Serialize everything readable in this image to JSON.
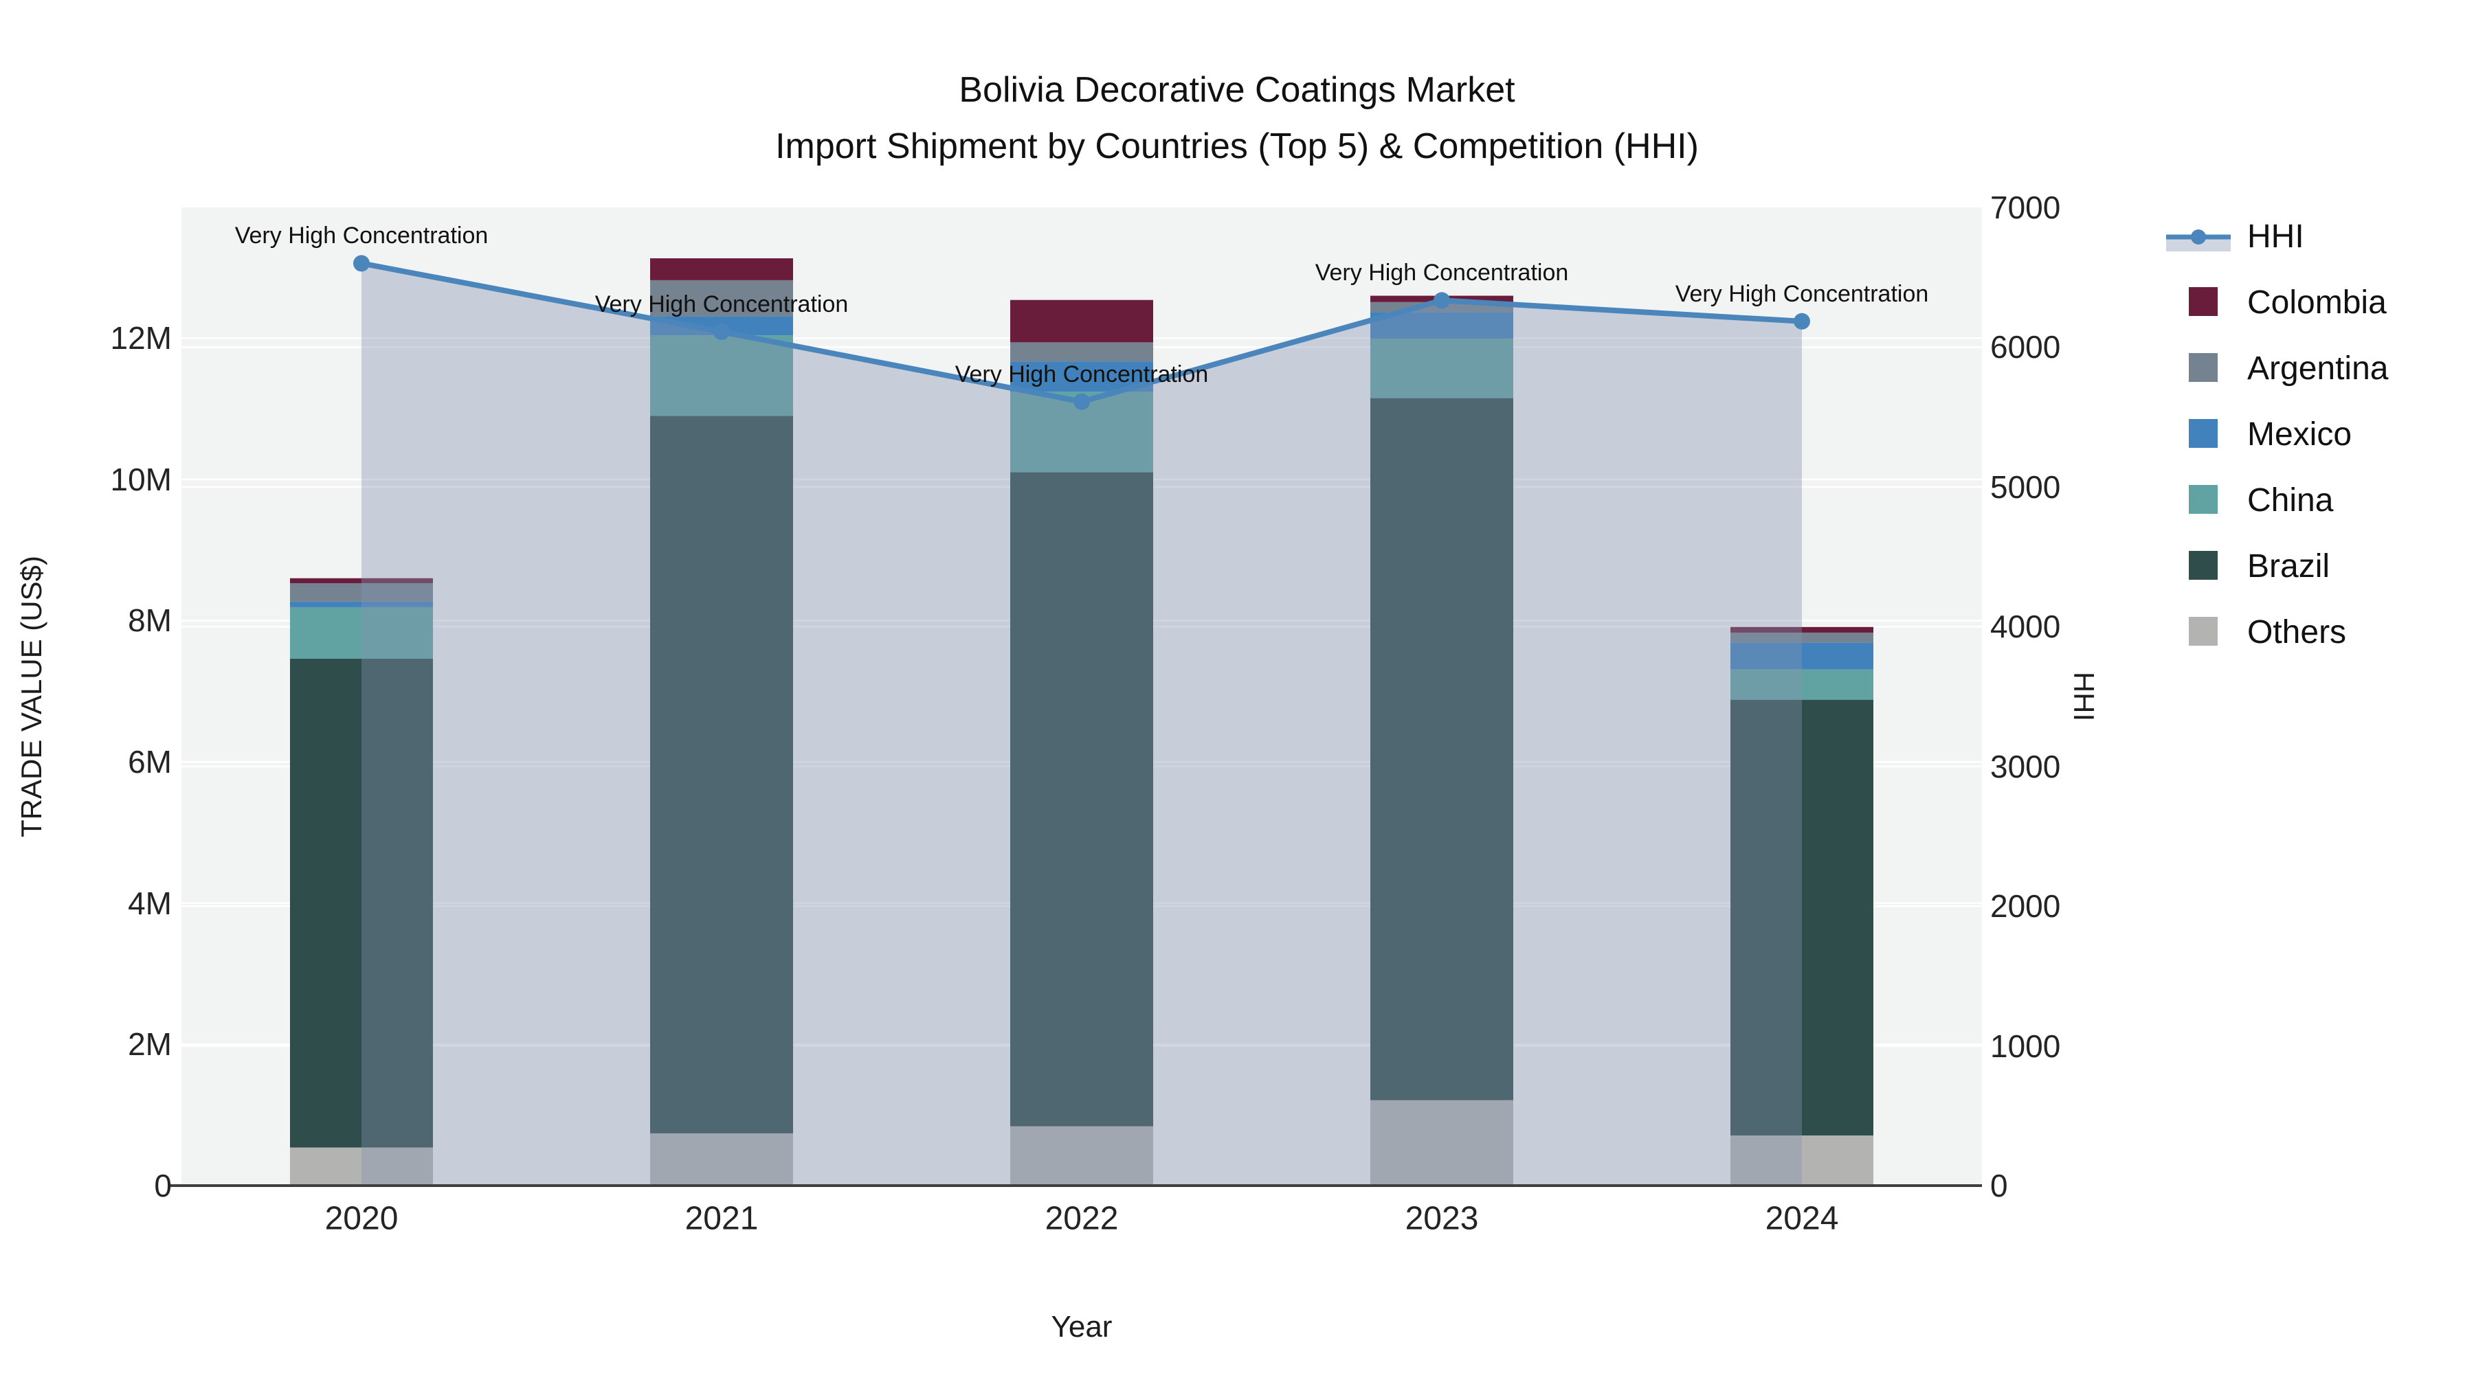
{
  "title": {
    "line1": "Bolivia Decorative Coatings Market",
    "line2": "Import Shipment by Countries (Top 5) & Competition (HHI)"
  },
  "chart_data": {
    "type": "bar",
    "stacked": true,
    "subtype": "stacked bars (left axis) + line with area fill (right axis)",
    "categories": [
      "2020",
      "2021",
      "2022",
      "2023",
      "2024"
    ],
    "series_unit": "US$ (millions), read on left axis",
    "series": [
      {
        "name": "Others",
        "color": "#B3B3B1",
        "values": [
          0.54,
          0.74,
          0.84,
          1.21,
          0.71
        ]
      },
      {
        "name": "Brazil",
        "color": "#2E4D4B",
        "values": [
          6.92,
          10.16,
          9.26,
          9.94,
          6.17
        ]
      },
      {
        "name": "China",
        "color": "#61A3A3",
        "values": [
          0.73,
          1.14,
          1.14,
          0.84,
          0.43
        ]
      },
      {
        "name": "Mexico",
        "color": "#4182BC",
        "values": [
          0.08,
          0.27,
          0.43,
          0.38,
          0.38
        ]
      },
      {
        "name": "Argentina",
        "color": "#74838F",
        "values": [
          0.26,
          0.51,
          0.27,
          0.14,
          0.14
        ]
      },
      {
        "name": "Colombia",
        "color": "#6A1D3A",
        "values": [
          0.07,
          0.31,
          0.6,
          0.09,
          0.08
        ]
      }
    ],
    "line_series": {
      "name": "HHI",
      "axis": "right",
      "color": "#4A86BC",
      "fill_color": "rgba(132,148,175,0.38)",
      "values": [
        6600,
        6110,
        5610,
        6335,
        6185
      ]
    },
    "annotation_text": "Very High Concentration",
    "annotations_per_point": [
      true,
      true,
      true,
      true,
      true
    ],
    "xlabel": "Year",
    "ylabel_left": "TRADE VALUE (US$)",
    "ylabel_right": "HHI",
    "yticks_left": [
      {
        "value": 0,
        "label": "0"
      },
      {
        "value": 2,
        "label": "2M"
      },
      {
        "value": 4,
        "label": "4M"
      },
      {
        "value": 6,
        "label": "6M"
      },
      {
        "value": 8,
        "label": "8M"
      },
      {
        "value": 10,
        "label": "10M"
      },
      {
        "value": 12,
        "label": "12M"
      }
    ],
    "yticks_right": [
      {
        "value": 0,
        "label": "0"
      },
      {
        "value": 1000,
        "label": "1000"
      },
      {
        "value": 2000,
        "label": "2000"
      },
      {
        "value": 3000,
        "label": "3000"
      },
      {
        "value": 4000,
        "label": "4000"
      },
      {
        "value": 5000,
        "label": "5000"
      },
      {
        "value": 6000,
        "label": "6000"
      },
      {
        "value": 7000,
        "label": "7000"
      }
    ],
    "ylim_left_millions": [
      0,
      13.85
    ],
    "ylim_right": [
      0,
      7000
    ],
    "grid": true,
    "legend_position": "right",
    "legend_order": [
      "HHI",
      "Colombia",
      "Argentina",
      "Mexico",
      "China",
      "Brazil",
      "Others"
    ]
  },
  "colors": {
    "paper_bg": "#FFFFFF",
    "plot_bg": "#F2F3F3",
    "gridline": "#FFFFFF",
    "axis_line": "#3F3F3F",
    "text": "#111111"
  }
}
